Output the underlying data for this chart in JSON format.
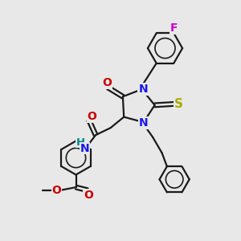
{
  "bg_color": "#e8e8e8",
  "line_color": "#1a1a1a",
  "N_color": "#1818ee",
  "O_color": "#cc0000",
  "S_color": "#aaaa00",
  "F_color": "#cc00cc",
  "HN_color": "#008888",
  "bond_lw": 1.6,
  "figsize": [
    3.0,
    3.0
  ],
  "dpi": 100,
  "xlim": [
    0,
    10
  ],
  "ylim": [
    0,
    10
  ]
}
